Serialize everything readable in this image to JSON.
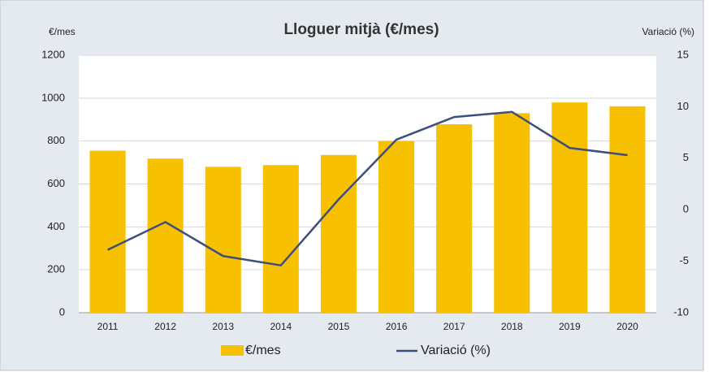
{
  "chart_data": {
    "type": "bar-line",
    "title": "Lloguer mitjà (€/mes)",
    "y_label": "€/mes",
    "y2_label": "Variació (%)",
    "categories": [
      "2011",
      "2012",
      "2013",
      "2014",
      "2015",
      "2016",
      "2017",
      "2018",
      "2019",
      "2020"
    ],
    "series": [
      {
        "name": "€/mes",
        "type": "bar",
        "color": "#f7c000",
        "values": [
          755,
          718,
          680,
          688,
          735,
          800,
          878,
          930,
          980,
          962
        ]
      },
      {
        "name": "Variació (%)",
        "type": "line",
        "color": "#3f4f7d",
        "axis": "y2",
        "values": [
          -3.9,
          -1.2,
          -4.5,
          -5.4,
          1.0,
          6.8,
          9.0,
          9.5,
          6.0,
          5.3
        ]
      }
    ],
    "ylim": [
      0,
      1200
    ],
    "yticks": [
      0,
      200,
      400,
      600,
      800,
      1000,
      1200
    ],
    "y2lim": [
      -10,
      15
    ],
    "y2ticks": [
      -10,
      -5,
      0,
      5,
      10,
      15
    ],
    "grid": true,
    "legend": "bottom"
  }
}
